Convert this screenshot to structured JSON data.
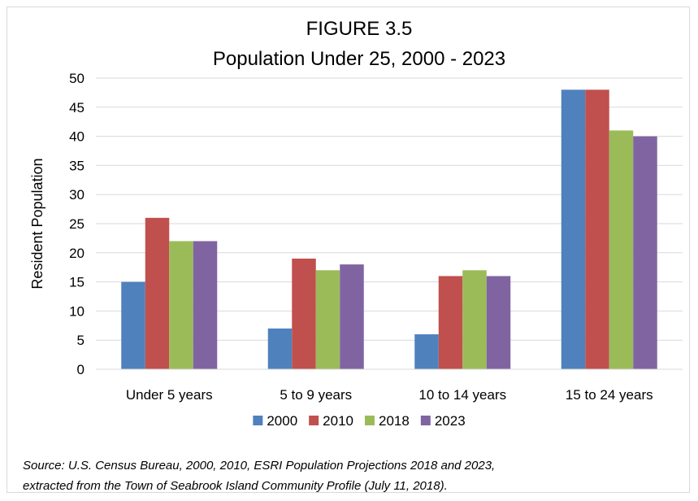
{
  "chart_data": {
    "type": "bar",
    "title_line1": "FIGURE 3.5",
    "title_line2": "Population Under 25, 2000 - 2023",
    "xlabel": "",
    "ylabel": "Resident Population",
    "ylim": [
      0,
      50
    ],
    "yticks": [
      0,
      5,
      10,
      15,
      20,
      25,
      30,
      35,
      40,
      45,
      50
    ],
    "grid": true,
    "legend_position": "bottom",
    "categories": [
      "Under 5 years",
      "5 to 9 years",
      "10 to 14 years",
      "15 to 24 years"
    ],
    "series": [
      {
        "name": "2000",
        "color": "#4f81bd",
        "values": [
          15,
          7,
          6,
          48
        ]
      },
      {
        "name": "2010",
        "color": "#c0504d",
        "values": [
          26,
          19,
          16,
          48
        ]
      },
      {
        "name": "2018",
        "color": "#9bbb59",
        "values": [
          22,
          17,
          17,
          41
        ]
      },
      {
        "name": "2023",
        "color": "#8064a2",
        "values": [
          22,
          18,
          16,
          40
        ]
      }
    ]
  },
  "source": {
    "line1": "Source: U.S. Census Bureau, 2000, 2010, ESRI Population Projections 2018 and 2023,",
    "line2": "extracted from the Town of Seabrook Island Community Profile (July 11, 2018)."
  }
}
